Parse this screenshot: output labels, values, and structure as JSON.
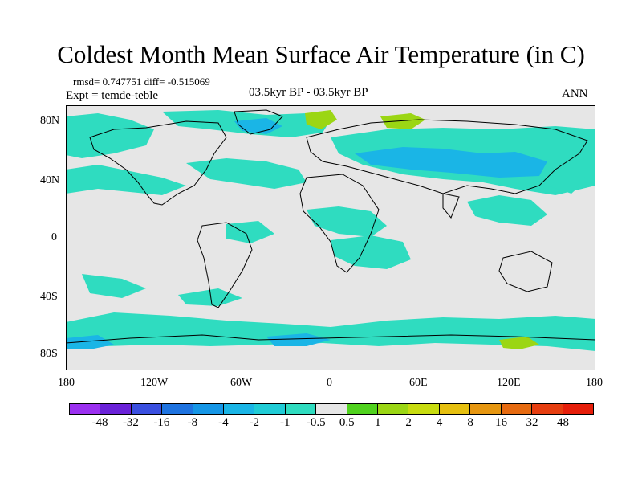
{
  "title": "Coldest Month Mean Surface Air Temperature (in C)",
  "stats": "rmsd= 0.747751 diff= -0.515069",
  "experiment": "Expt = temde-teble",
  "period": "03.5kyr BP - 03.5kyr BP",
  "season": "ANN",
  "lat_ticks": [
    "80N",
    "40N",
    "0",
    "40S",
    "80S"
  ],
  "lon_ticks": [
    "180",
    "120W",
    "60W",
    "0",
    "60E",
    "120E",
    "180"
  ],
  "colorbar": {
    "labels": [
      "-48",
      "-32",
      "-16",
      "-8",
      "-4",
      "-2",
      "-1",
      "-0.5",
      "0.5",
      "1",
      "2",
      "4",
      "8",
      "16",
      "32",
      "48"
    ],
    "colors": [
      "#9b30f0",
      "#6a22d8",
      "#3a4fe0",
      "#1e73e0",
      "#1596e6",
      "#1ab5e6",
      "#20ccd6",
      "#2fdcc0",
      "#e6e6e6",
      "#50d21e",
      "#9bd614",
      "#c8dc10",
      "#e6c010",
      "#e69610",
      "#e66a10",
      "#e63e10",
      "#e61e0a"
    ]
  },
  "map_colors": {
    "background": "#e6e6e6",
    "neg_small": "#2fdcc0",
    "neg_mid": "#1ab5e6",
    "pos_small": "#9bd614",
    "coast": "#000000"
  }
}
